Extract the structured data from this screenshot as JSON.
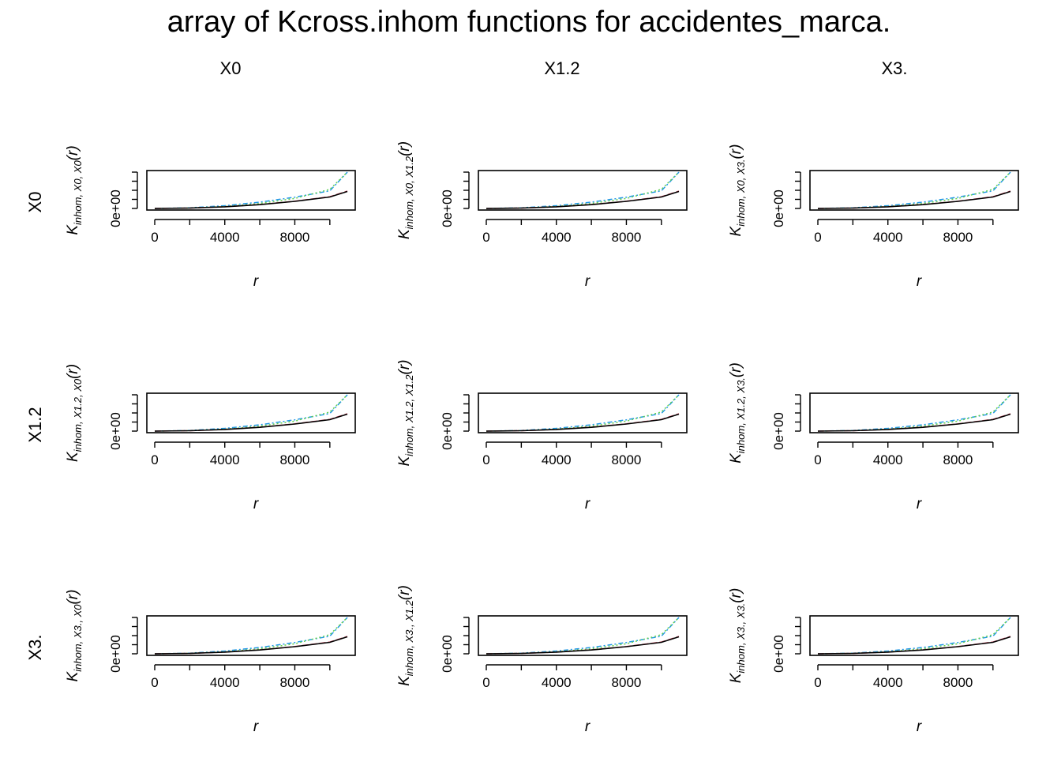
{
  "title": "array of Kcross.inhom functions for accidentes_marca.",
  "column_headers": [
    "X0",
    "X1.2",
    "X3."
  ],
  "row_headers": [
    "X0",
    "X1.2",
    "X3."
  ],
  "colors": {
    "iso": "#000000",
    "trans": "#DF536B",
    "border": "#61D04F",
    "theo": "#2297E6"
  },
  "chart_data": [
    {
      "type": "line",
      "row": "X0",
      "col": "X0",
      "ylabel": "K",
      "ylabel_sub": "inhom, X0, X0",
      "ylabel_arg": "(r)",
      "xlabel": "r",
      "x_ticks": [
        0,
        4000,
        8000
      ],
      "y_tick_label": "0e+00",
      "xlim": [
        0,
        11000
      ],
      "ylim": [
        0,
        380000000
      ],
      "series": [
        {
          "key": "iso",
          "values": [
            0,
            4000000,
            17000000,
            40000000,
            74000000,
            120000000,
            178000000
          ]
        },
        {
          "key": "trans",
          "values": [
            0,
            4200000,
            17500000,
            41000000,
            76000000,
            123000000,
            182000000
          ]
        },
        {
          "key": "border",
          "values": [
            0,
            5000000,
            21000000,
            52000000,
            105000000,
            200000000,
            380000000
          ]
        },
        {
          "key": "theo",
          "values": [
            0,
            7000000,
            29000000,
            66000000,
            118000000,
            184000000,
            380000000
          ]
        }
      ],
      "x": [
        0,
        2000,
        4000,
        6000,
        8000,
        10000,
        11000
      ]
    },
    {
      "type": "line",
      "row": "X0",
      "col": "X1.2",
      "ylabel": "K",
      "ylabel_sub": "inhom, X0, X1.2",
      "ylabel_arg": "(r)",
      "xlabel": "r",
      "x_ticks": [
        0,
        4000,
        8000
      ],
      "y_tick_label": "0e+00",
      "xlim": [
        0,
        11000
      ],
      "ylim": [
        0,
        380000000
      ],
      "series": [
        {
          "key": "iso",
          "values": [
            0,
            4000000,
            17000000,
            40000000,
            74000000,
            120000000,
            178000000
          ]
        },
        {
          "key": "trans",
          "values": [
            0,
            4200000,
            17500000,
            41000000,
            76000000,
            123000000,
            182000000
          ]
        },
        {
          "key": "border",
          "values": [
            0,
            5000000,
            21000000,
            52000000,
            105000000,
            200000000,
            380000000
          ]
        },
        {
          "key": "theo",
          "values": [
            0,
            7000000,
            29000000,
            66000000,
            118000000,
            184000000,
            380000000
          ]
        }
      ],
      "x": [
        0,
        2000,
        4000,
        6000,
        8000,
        10000,
        11000
      ]
    },
    {
      "type": "line",
      "row": "X0",
      "col": "X3.",
      "ylabel": "K",
      "ylabel_sub": "inhom, X0, X3.",
      "ylabel_arg": "(r)",
      "xlabel": "r",
      "x_ticks": [
        0,
        4000,
        8000
      ],
      "y_tick_label": "0e+00",
      "xlim": [
        0,
        11000
      ],
      "ylim": [
        0,
        380000000
      ],
      "series": [
        {
          "key": "iso",
          "values": [
            0,
            4000000,
            17000000,
            40000000,
            74000000,
            120000000,
            178000000
          ]
        },
        {
          "key": "trans",
          "values": [
            0,
            4200000,
            17500000,
            41000000,
            76000000,
            123000000,
            182000000
          ]
        },
        {
          "key": "border",
          "values": [
            0,
            5000000,
            21000000,
            52000000,
            105000000,
            200000000,
            380000000
          ]
        },
        {
          "key": "theo",
          "values": [
            0,
            7000000,
            29000000,
            66000000,
            118000000,
            184000000,
            380000000
          ]
        }
      ],
      "x": [
        0,
        2000,
        4000,
        6000,
        8000,
        10000,
        11000
      ]
    },
    {
      "type": "line",
      "row": "X1.2",
      "col": "X0",
      "ylabel": "K",
      "ylabel_sub": "inhom, X1.2, X0",
      "ylabel_arg": "(r)",
      "xlabel": "r",
      "x_ticks": [
        0,
        4000,
        8000
      ],
      "y_tick_label": "0e+00",
      "xlim": [
        0,
        11000
      ],
      "ylim": [
        0,
        380000000
      ],
      "series": [
        {
          "key": "iso",
          "values": [
            0,
            4000000,
            17000000,
            40000000,
            74000000,
            120000000,
            178000000
          ]
        },
        {
          "key": "trans",
          "values": [
            0,
            4200000,
            17500000,
            41000000,
            76000000,
            123000000,
            182000000
          ]
        },
        {
          "key": "border",
          "values": [
            0,
            5000000,
            21000000,
            52000000,
            105000000,
            200000000,
            380000000
          ]
        },
        {
          "key": "theo",
          "values": [
            0,
            7000000,
            29000000,
            66000000,
            118000000,
            184000000,
            380000000
          ]
        }
      ],
      "x": [
        0,
        2000,
        4000,
        6000,
        8000,
        10000,
        11000
      ]
    },
    {
      "type": "line",
      "row": "X1.2",
      "col": "X1.2",
      "ylabel": "K",
      "ylabel_sub": "inhom, X1.2, X1.2",
      "ylabel_arg": "(r)",
      "xlabel": "r",
      "x_ticks": [
        0,
        4000,
        8000
      ],
      "y_tick_label": "0e+00",
      "xlim": [
        0,
        11000
      ],
      "ylim": [
        0,
        380000000
      ],
      "series": [
        {
          "key": "iso",
          "values": [
            0,
            4000000,
            17000000,
            40000000,
            74000000,
            120000000,
            178000000
          ]
        },
        {
          "key": "trans",
          "values": [
            0,
            4200000,
            17500000,
            41000000,
            76000000,
            123000000,
            182000000
          ]
        },
        {
          "key": "border",
          "values": [
            0,
            5000000,
            21000000,
            52000000,
            105000000,
            200000000,
            380000000
          ]
        },
        {
          "key": "theo",
          "values": [
            0,
            7000000,
            29000000,
            66000000,
            118000000,
            184000000,
            380000000
          ]
        }
      ],
      "x": [
        0,
        2000,
        4000,
        6000,
        8000,
        10000,
        11000
      ]
    },
    {
      "type": "line",
      "row": "X1.2",
      "col": "X3.",
      "ylabel": "K",
      "ylabel_sub": "inhom, X1.2, X3.",
      "ylabel_arg": "(r)",
      "xlabel": "r",
      "x_ticks": [
        0,
        4000,
        8000
      ],
      "y_tick_label": "0e+00",
      "xlim": [
        0,
        11000
      ],
      "ylim": [
        0,
        380000000
      ],
      "series": [
        {
          "key": "iso",
          "values": [
            0,
            4000000,
            17000000,
            40000000,
            74000000,
            120000000,
            178000000
          ]
        },
        {
          "key": "trans",
          "values": [
            0,
            4200000,
            17500000,
            41000000,
            76000000,
            123000000,
            182000000
          ]
        },
        {
          "key": "border",
          "values": [
            0,
            5000000,
            21000000,
            52000000,
            105000000,
            200000000,
            380000000
          ]
        },
        {
          "key": "theo",
          "values": [
            0,
            7000000,
            29000000,
            66000000,
            118000000,
            184000000,
            380000000
          ]
        }
      ],
      "x": [
        0,
        2000,
        4000,
        6000,
        8000,
        10000,
        11000
      ]
    },
    {
      "type": "line",
      "row": "X3.",
      "col": "X0",
      "ylabel": "K",
      "ylabel_sub": "inhom, X3., X0",
      "ylabel_arg": "(r)",
      "xlabel": "r",
      "x_ticks": [
        0,
        4000,
        8000
      ],
      "y_tick_label": "0e+00",
      "xlim": [
        0,
        11000
      ],
      "ylim": [
        0,
        380000000
      ],
      "series": [
        {
          "key": "iso",
          "values": [
            0,
            4000000,
            17000000,
            40000000,
            74000000,
            120000000,
            178000000
          ]
        },
        {
          "key": "trans",
          "values": [
            0,
            4200000,
            17500000,
            41000000,
            76000000,
            123000000,
            182000000
          ]
        },
        {
          "key": "border",
          "values": [
            0,
            5000000,
            21000000,
            52000000,
            105000000,
            200000000,
            380000000
          ]
        },
        {
          "key": "theo",
          "values": [
            0,
            7000000,
            29000000,
            66000000,
            118000000,
            184000000,
            380000000
          ]
        }
      ],
      "x": [
        0,
        2000,
        4000,
        6000,
        8000,
        10000,
        11000
      ]
    },
    {
      "type": "line",
      "row": "X3.",
      "col": "X1.2",
      "ylabel": "K",
      "ylabel_sub": "inhom, X3., X1.2",
      "ylabel_arg": "(r)",
      "xlabel": "r",
      "x_ticks": [
        0,
        4000,
        8000
      ],
      "y_tick_label": "0e+00",
      "xlim": [
        0,
        11000
      ],
      "ylim": [
        0,
        380000000
      ],
      "series": [
        {
          "key": "iso",
          "values": [
            0,
            4000000,
            17000000,
            40000000,
            74000000,
            120000000,
            178000000
          ]
        },
        {
          "key": "trans",
          "values": [
            0,
            4200000,
            17500000,
            41000000,
            76000000,
            123000000,
            182000000
          ]
        },
        {
          "key": "border",
          "values": [
            0,
            5000000,
            21000000,
            52000000,
            105000000,
            200000000,
            380000000
          ]
        },
        {
          "key": "theo",
          "values": [
            0,
            7000000,
            29000000,
            66000000,
            118000000,
            184000000,
            380000000
          ]
        }
      ],
      "x": [
        0,
        2000,
        4000,
        6000,
        8000,
        10000,
        11000
      ]
    },
    {
      "type": "line",
      "row": "X3.",
      "col": "X3.",
      "ylabel": "K",
      "ylabel_sub": "inhom, X3., X3.",
      "ylabel_arg": "(r)",
      "xlabel": "r",
      "x_ticks": [
        0,
        4000,
        8000
      ],
      "y_tick_label": "0e+00",
      "xlim": [
        0,
        11000
      ],
      "ylim": [
        0,
        380000000
      ],
      "series": [
        {
          "key": "iso",
          "values": [
            0,
            4000000,
            17000000,
            40000000,
            74000000,
            120000000,
            178000000
          ]
        },
        {
          "key": "trans",
          "values": [
            0,
            4200000,
            17500000,
            41000000,
            76000000,
            123000000,
            182000000
          ]
        },
        {
          "key": "border",
          "values": [
            0,
            5000000,
            21000000,
            52000000,
            105000000,
            200000000,
            380000000
          ]
        },
        {
          "key": "theo",
          "values": [
            0,
            7000000,
            29000000,
            66000000,
            118000000,
            184000000,
            380000000
          ]
        }
      ],
      "x": [
        0,
        2000,
        4000,
        6000,
        8000,
        10000,
        11000
      ]
    }
  ]
}
